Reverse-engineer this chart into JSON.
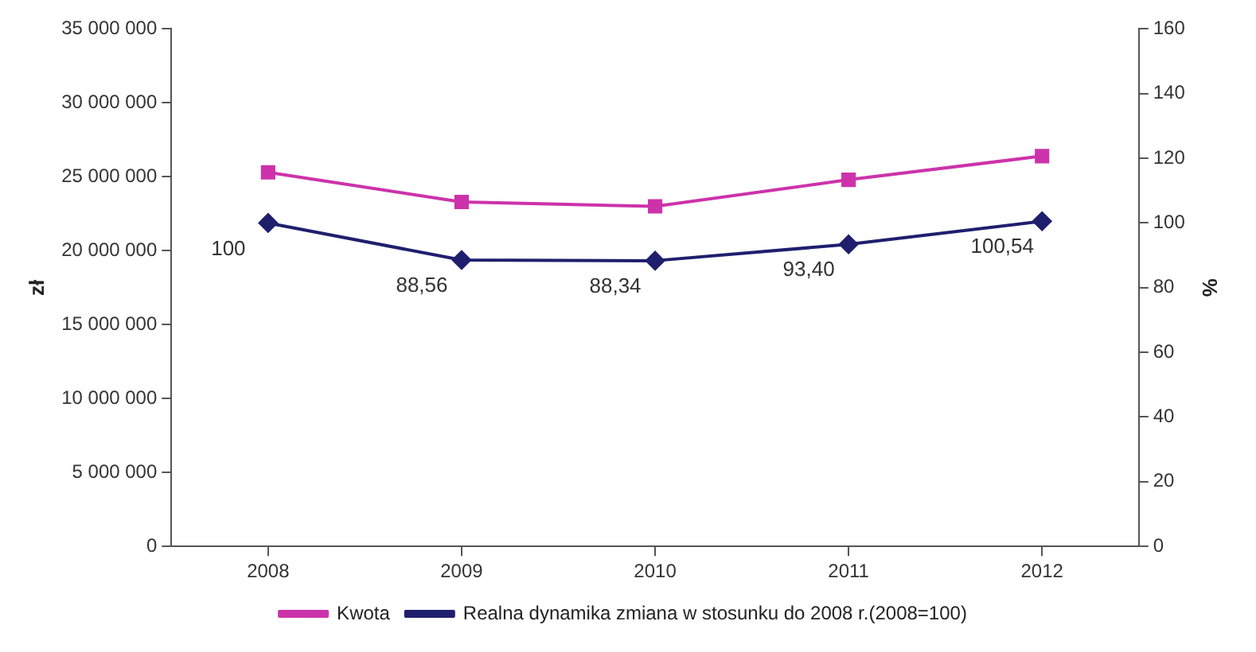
{
  "chart_data": {
    "type": "line",
    "categories": [
      "2008",
      "2009",
      "2010",
      "2011",
      "2012"
    ],
    "ylabel": "zł",
    "y2label": "%",
    "series": [
      {
        "name": "Kwota",
        "color": "#cc33aa",
        "marker": "square",
        "values": [
          25300000,
          23300000,
          23000000,
          24800000,
          26400000
        ]
      },
      {
        "name": "Realna dynamika zmiana w stosunku do 2008 r.(2008=100)",
        "color": "#1f1f6e",
        "marker": "diamond",
        "axis": "y2",
        "values": [
          100,
          88.56,
          88.34,
          93.4,
          100.54
        ],
        "value_labels": [
          "100",
          "88,56",
          "88,34",
          "93,40",
          "100,54"
        ]
      }
    ],
    "ylim": [
      0,
      35000000
    ],
    "yticks": [
      {
        "value": 0,
        "label": "0"
      },
      {
        "value": 5000000,
        "label": "5 000 000"
      },
      {
        "value": 10000000,
        "label": "10 000 000"
      },
      {
        "value": 15000000,
        "label": "15 000 000"
      },
      {
        "value": 20000000,
        "label": "20 000 000"
      },
      {
        "value": 25000000,
        "label": "25 000 000"
      },
      {
        "value": 30000000,
        "label": "30 000 000"
      },
      {
        "value": 35000000,
        "label": "35 000 000"
      }
    ],
    "y2lim": [
      0,
      160
    ],
    "y2ticks": [
      0,
      20,
      40,
      60,
      80,
      100,
      120,
      140,
      160
    ],
    "grid": false,
    "legend": "bottom",
    "line_style": "solid"
  }
}
